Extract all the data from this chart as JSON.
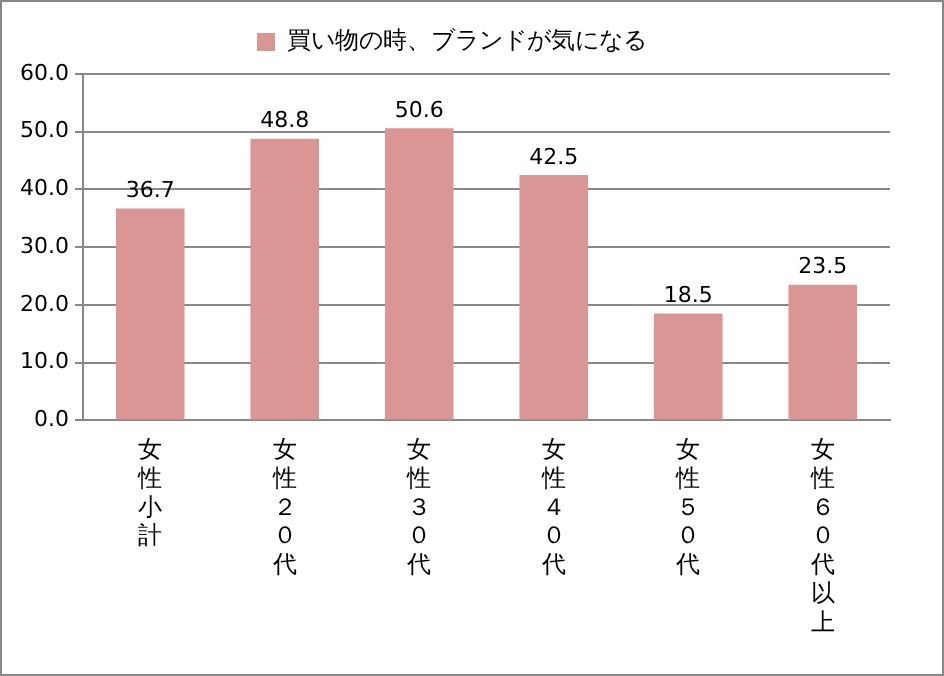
{
  "chart_data": {
    "type": "bar",
    "categories": [
      "女性小計",
      "女性２０代",
      "女性３０代",
      "女性４０代",
      "女性５０代",
      "女性６０代以上"
    ],
    "series": [
      {
        "name": "買い物の時、ブランドが気になる",
        "color": "#d99694",
        "values": [
          36.7,
          48.8,
          50.6,
          42.5,
          18.5,
          23.5
        ]
      }
    ],
    "ylim": [
      0,
      60
    ],
    "yticks": [
      {
        "value": 0,
        "label": "0.0"
      },
      {
        "value": 10,
        "label": "10.0"
      },
      {
        "value": 20,
        "label": "20.0"
      },
      {
        "value": 30,
        "label": "30.0"
      },
      {
        "value": 40,
        "label": "40.0"
      },
      {
        "value": 50,
        "label": "50.0"
      },
      {
        "value": 60,
        "label": "60.0"
      }
    ],
    "grid": "y",
    "legend": "top",
    "data_labels": true
  }
}
